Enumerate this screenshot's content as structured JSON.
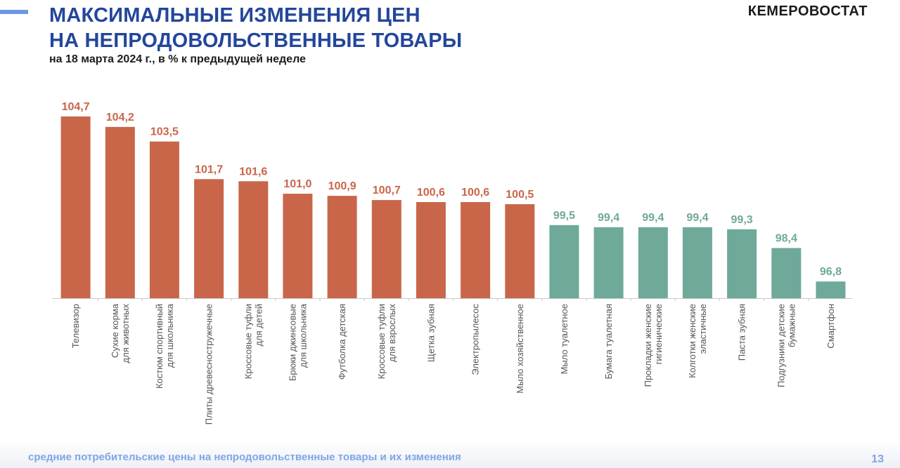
{
  "header": {
    "title_line1": "МАКСИМАЛЬНЫЕ ИЗМЕНЕНИЯ ЦЕН",
    "title_line2": "НА НЕПРОДОВОЛЬСТВЕННЫЕ ТОВАРЫ",
    "subtitle": "на 18 марта 2024 г., в % к предыдущей неделе",
    "brand": "КЕМЕРОВОСТАТ"
  },
  "footer": {
    "link_text": "средние потребительские цены на непродовольственные товары и их изменения",
    "page_number": "13"
  },
  "colors": {
    "title": "#24469b",
    "increase": "#c9664a",
    "decrease": "#6ea99a",
    "footer": "#7fa6e8"
  },
  "chart_data": {
    "type": "bar",
    "title": "МАКСИМАЛЬНЫЕ ИЗМЕНЕНИЯ ЦЕН НА НЕПРОДОВОЛЬСТВЕННЫЕ ТОВАРЫ",
    "subtitle": "на 18 марта 2024 г., в % к предыдущей неделе",
    "xlabel": "",
    "ylabel": "",
    "ylim": [
      96,
      104.8
    ],
    "grid": false,
    "legend": "none",
    "categories": [
      [
        "Телевизор"
      ],
      [
        "Сухие корма",
        "для животных"
      ],
      [
        "Костюм спортивный",
        "для школьника"
      ],
      [
        "Плиты древесностружечные"
      ],
      [
        "Кроссовые туфли",
        "для детей"
      ],
      [
        "Брюки джинсовые",
        "для школьника"
      ],
      [
        "Футболка детская"
      ],
      [
        "Кроссовые туфли",
        "для взрослых"
      ],
      [
        "Щетка зубная"
      ],
      [
        "Электропылесос"
      ],
      [
        "Мыло хозяйственное"
      ],
      [
        "Мыло туалетное"
      ],
      [
        "Бумага туалетная"
      ],
      [
        "Прокладки женские",
        "гигиенические"
      ],
      [
        "Колготки женские",
        "эластичные"
      ],
      [
        "Паста зубная"
      ],
      [
        "Подгузники детские",
        "бумажные"
      ],
      [
        "Смартфон"
      ]
    ],
    "values": [
      104.7,
      104.2,
      103.5,
      101.7,
      101.6,
      101.0,
      100.9,
      100.7,
      100.6,
      100.6,
      100.5,
      99.5,
      99.4,
      99.4,
      99.4,
      99.3,
      98.4,
      96.8
    ],
    "value_labels": [
      "104,7",
      "104,2",
      "103,5",
      "101,7",
      "101,6",
      "101,0",
      "100,9",
      "100,7",
      "100,6",
      "100,6",
      "100,5",
      "99,5",
      "99,4",
      "99,4",
      "99,4",
      "99,3",
      "98,4",
      "96,8"
    ]
  }
}
